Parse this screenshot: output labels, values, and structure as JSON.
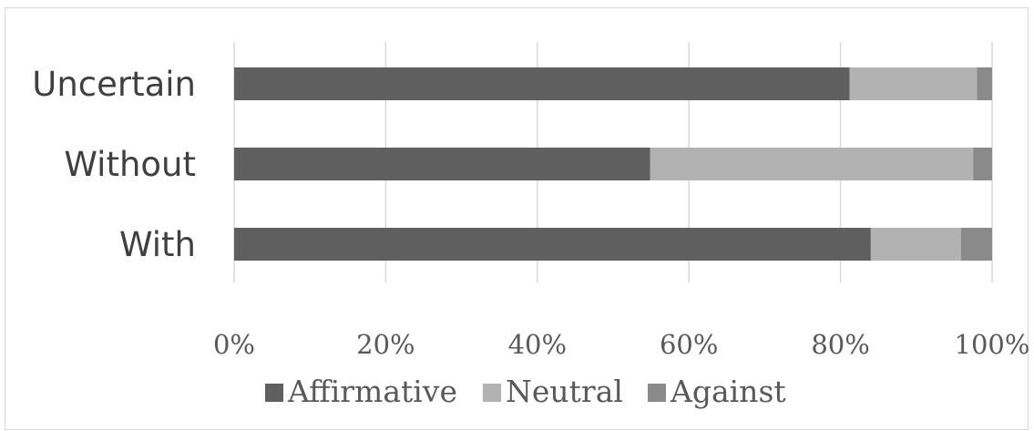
{
  "chart_data": {
    "type": "bar",
    "orientation": "horizontal",
    "stacked": "percent",
    "categories": [
      "Uncertain",
      "Without",
      "With"
    ],
    "series": [
      {
        "name": "Affirmative",
        "values": [
          81.2,
          54.9,
          84.0
        ],
        "color": "#5f5f5f"
      },
      {
        "name": "Neutral",
        "values": [
          16.8,
          42.6,
          11.9
        ],
        "color": "#b2b2b2"
      },
      {
        "name": "Against",
        "values": [
          2.0,
          2.5,
          4.1
        ],
        "color": "#8a8a8a"
      }
    ],
    "xticks": [
      "0%",
      "20%",
      "40%",
      "60%",
      "80%",
      "100%"
    ],
    "xlim": [
      0,
      100
    ],
    "grid": true,
    "legend_position": "bottom"
  }
}
